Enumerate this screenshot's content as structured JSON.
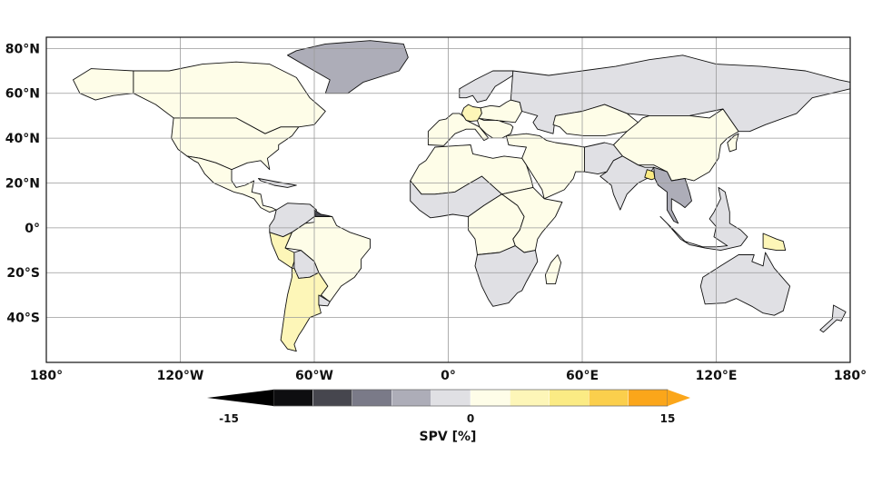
{
  "map": {
    "projection": "PlateCarree",
    "lon_range": [
      -180,
      180
    ],
    "lat_range": [
      -60,
      85
    ],
    "lat_gridlines": [
      80,
      60,
      40,
      20,
      0,
      -20,
      -40
    ],
    "lon_gridlines": [
      -180,
      -120,
      -60,
      0,
      60,
      120,
      180
    ],
    "lat_labels": [
      "80°N",
      "60°N",
      "40°N",
      "20°N",
      "0°",
      "20°S",
      "40°S"
    ],
    "lon_labels": [
      "180°",
      "120°W",
      "60°W",
      "0°",
      "60°E",
      "120°E",
      "180°"
    ],
    "ocean_color": "#ffffff",
    "border_color": "#111111"
  },
  "colorbar": {
    "label": "SPV [%]",
    "tick_labels": [
      "-15",
      "0",
      "15"
    ],
    "range": [
      -15,
      15
    ],
    "extend": "both",
    "bins": [
      {
        "from": -15,
        "to": -12,
        "color": "#0e0e10"
      },
      {
        "from": -12,
        "to": -9,
        "color": "#46464e"
      },
      {
        "from": -9,
        "to": -6,
        "color": "#7a7a88"
      },
      {
        "from": -6,
        "to": -3,
        "color": "#adadb8"
      },
      {
        "from": -3,
        "to": 0,
        "color": "#e0e0e4"
      },
      {
        "from": 0,
        "to": 3,
        "color": "#fefde8"
      },
      {
        "from": 3,
        "to": 6,
        "color": "#fdf6b8"
      },
      {
        "from": 6,
        "to": 9,
        "color": "#fbeb84"
      },
      {
        "from": 9,
        "to": 12,
        "color": "#fbcf4c"
      },
      {
        "from": 12,
        "to": 15,
        "color": "#fba61a"
      }
    ],
    "under_color": "#000000",
    "over_color": "#fba61a"
  },
  "regions": [
    {
      "name": "Canada",
      "value": 1.0
    },
    {
      "name": "United States",
      "value": 1.5
    },
    {
      "name": "Alaska",
      "value": 1.0
    },
    {
      "name": "Greenland",
      "value": -5.0
    },
    {
      "name": "Mexico & Central America",
      "value": 1.5
    },
    {
      "name": "Caribbean",
      "value": -2.0
    },
    {
      "name": "Northern South America",
      "value": -2.0
    },
    {
      "name": "Guyana",
      "value": -10.0
    },
    {
      "name": "Brazil",
      "value": 1.0
    },
    {
      "name": "Peru",
      "value": 4.0
    },
    {
      "name": "Bolivia",
      "value": -2.0
    },
    {
      "name": "Chile & Argentina",
      "value": 5.0
    },
    {
      "name": "Uruguay",
      "value": -2.0
    },
    {
      "name": "Western Europe",
      "value": 2.0
    },
    {
      "name": "Germany",
      "value": 5.0
    },
    {
      "name": "Scandinavia",
      "value": -2.0
    },
    {
      "name": "Eastern Europe",
      "value": 2.0
    },
    {
      "name": "Russia",
      "value": -2.0
    },
    {
      "name": "Kazakhstan",
      "value": 1.0
    },
    {
      "name": "China & Mongolia",
      "value": 1.0
    },
    {
      "name": "Middle East",
      "value": 1.5
    },
    {
      "name": "Afghanistan & Pakistan",
      "value": -2.0
    },
    {
      "name": "India",
      "value": -2.0
    },
    {
      "name": "Bangladesh",
      "value": 7.0
    },
    {
      "name": "Southeast Asia",
      "value": -4.0
    },
    {
      "name": "Indonesia & Philippines",
      "value": -2.0
    },
    {
      "name": "Papua New Guinea",
      "value": 5.0
    },
    {
      "name": "Japan & Korea",
      "value": 1.0
    },
    {
      "name": "North Africa",
      "value": 1.0
    },
    {
      "name": "Sahel & West Africa",
      "value": -2.0
    },
    {
      "name": "Central Africa",
      "value": 1.5
    },
    {
      "name": "East Africa",
      "value": 2.0
    },
    {
      "name": "Southern Africa",
      "value": -3.0
    },
    {
      "name": "Madagascar",
      "value": 1.0
    },
    {
      "name": "Australia",
      "value": -2.0
    },
    {
      "name": "New Zealand",
      "value": -2.0
    }
  ]
}
